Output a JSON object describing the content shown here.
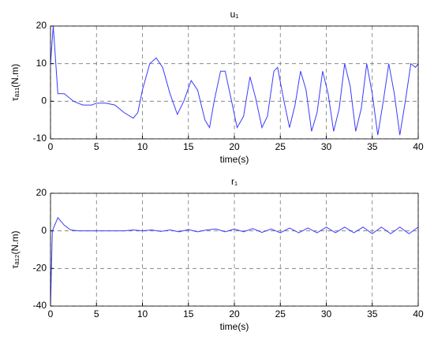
{
  "chart_data": [
    {
      "type": "line",
      "title": "u₁",
      "xlabel": "time(s)",
      "ylabel": "τₐ₁₁(N.m)",
      "color": "#3a3aff",
      "grid": true,
      "xlim": [
        0,
        40
      ],
      "xticks": [
        0,
        5,
        10,
        15,
        20,
        25,
        30,
        35,
        40
      ],
      "ylim": [
        -10,
        20
      ],
      "yticks": [
        -10,
        0,
        10,
        20
      ],
      "x": [
        0,
        0.3,
        0.8,
        1.5,
        2.5,
        3.5,
        4.5,
        5,
        6,
        7,
        8,
        9,
        9.5,
        10,
        10.8,
        11.5,
        12.2,
        13,
        13.8,
        14.5,
        15.3,
        16,
        16.8,
        17.3,
        17.8,
        18.5,
        19,
        19.7,
        20.3,
        21,
        21.7,
        22.3,
        23,
        23.6,
        24.3,
        24.7,
        25.4,
        26,
        26.6,
        27.2,
        27.8,
        28.4,
        29,
        29.6,
        30.2,
        30.8,
        31.4,
        32,
        32.6,
        33.2,
        33.8,
        34.4,
        35,
        35.6,
        36.2,
        36.8,
        37.4,
        38,
        38.6,
        39.2,
        39.7,
        40
      ],
      "values": [
        10,
        20,
        2,
        2,
        0,
        -1,
        -1,
        -0.5,
        -0.5,
        -1,
        -3,
        -4.5,
        -3,
        3,
        10,
        11.5,
        9,
        2,
        -3.5,
        0,
        5.5,
        3,
        -5,
        -7,
        0,
        8,
        8,
        0,
        -7,
        -4,
        6.5,
        1,
        -7,
        -4,
        8,
        9,
        0,
        -7,
        -1,
        8,
        3,
        -8,
        -3,
        8,
        2,
        -8,
        -2,
        10,
        4,
        -8,
        -2,
        10,
        2,
        -9,
        0,
        10,
        2,
        -9,
        0,
        10,
        9,
        10
      ]
    },
    {
      "type": "line",
      "title": "r₁",
      "xlabel": "time(s)",
      "ylabel": "τₐ₁₂(N.m)",
      "color": "#3a3aff",
      "grid": true,
      "xlim": [
        0,
        40
      ],
      "xticks": [
        0,
        5,
        10,
        15,
        20,
        25,
        30,
        35,
        40
      ],
      "ylim": [
        -40,
        20
      ],
      "yticks": [
        -40,
        -20,
        0,
        20
      ],
      "x": [
        0,
        0.2,
        0.8,
        1.5,
        2.2,
        3,
        5,
        8,
        9,
        10,
        11,
        12,
        13,
        14,
        15,
        16,
        17,
        18,
        19,
        20,
        21,
        22,
        23,
        24,
        25,
        26,
        27,
        28,
        29,
        30,
        31,
        32,
        33,
        34,
        35,
        36,
        37,
        38,
        39,
        40
      ],
      "values": [
        -40,
        0,
        7,
        3,
        0.5,
        0,
        0,
        0,
        0.5,
        0,
        0.5,
        -0.3,
        0.5,
        -0.5,
        0.7,
        -0.5,
        0.5,
        1,
        -0.5,
        1,
        -0.5,
        1.2,
        -0.8,
        1,
        -1,
        1.5,
        -1,
        1.5,
        -1,
        2,
        -1,
        2,
        -1,
        2,
        -1.5,
        2,
        -1.5,
        2,
        -1.5,
        2
      ]
    }
  ]
}
